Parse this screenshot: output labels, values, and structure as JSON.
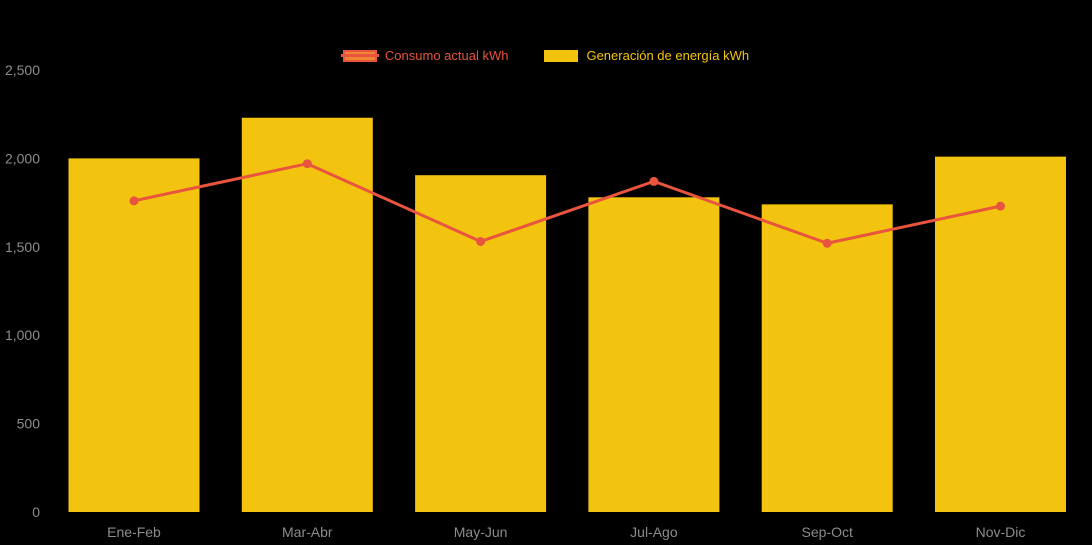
{
  "chart_data": {
    "type": "bar",
    "subtype": "bar-and-line-combo",
    "title": "",
    "xlabel": "",
    "ylabel": "",
    "categories": [
      "Ene-Feb",
      "Mar-Abr",
      "May-Jun",
      "Jul-Ago",
      "Sep-Oct",
      "Nov-Dic"
    ],
    "series": [
      {
        "name": "Consumo actual kWh",
        "type": "line",
        "color": "#e8543e",
        "values": [
          1760,
          1970,
          1530,
          1870,
          1520,
          1730
        ]
      },
      {
        "name": "Generación de energía kWh",
        "type": "bar",
        "color": "#f3c40f",
        "values": [
          2000,
          2230,
          1905,
          1780,
          1740,
          2010
        ]
      }
    ],
    "ylim": [
      0,
      2500
    ],
    "yticks": [
      0,
      500,
      1000,
      1500,
      2000,
      2500
    ],
    "ytick_labels": [
      "0",
      "500",
      "1,000",
      "1,500",
      "2,000",
      "2,500"
    ],
    "grid": false,
    "legend_position": "top",
    "background_color": "#000000",
    "axis_label_color": "#8c8c8c"
  },
  "legend": {
    "items": [
      {
        "label": "Consumo actual kWh",
        "text_color": "#e8543e",
        "swatch_fill": "#ef8432",
        "swatch_line_color": "#e8543e",
        "icon": "line-marker-swatch"
      },
      {
        "label": "Generación de energía kWh",
        "text_color": "#f3c40f",
        "swatch_fill": "#f3c40f",
        "swatch_line_color": "",
        "icon": "bar-swatch"
      }
    ]
  }
}
